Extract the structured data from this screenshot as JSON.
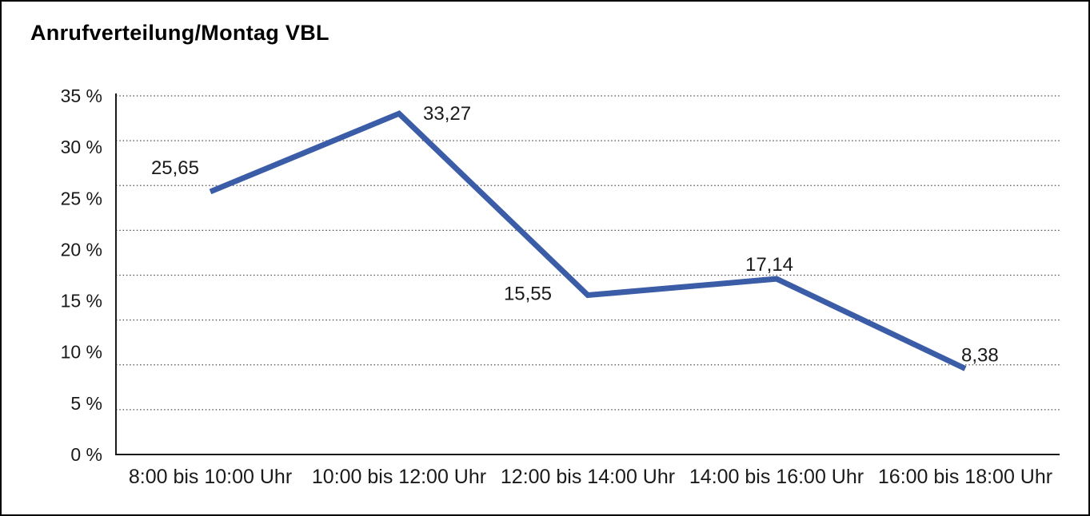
{
  "chart": {
    "title": "Anrufverteilung/Montag VBL"
  },
  "chart_data": {
    "type": "line",
    "title": "Anrufverteilung/Montag VBL",
    "categories": [
      "8:00 bis 10:00 Uhr",
      "10:00 bis 12:00 Uhr",
      "12:00 bis 14:00 Uhr",
      "14:00 bis 16:00 Uhr",
      "16:00 bis 18:00 Uhr"
    ],
    "values": [
      25.65,
      33.27,
      15.55,
      17.14,
      8.38
    ],
    "value_labels": [
      "25,65",
      "33,27",
      "15,55",
      "17,14",
      "8,38"
    ],
    "y_ticks": [
      "0 %",
      "5 %",
      "10 %",
      "15 %",
      "20 %",
      "25 %",
      "30 %",
      "35 %"
    ],
    "ylim": [
      0,
      35
    ],
    "xlabel": "",
    "ylabel": "",
    "legend": "none",
    "grid": "horizontal-dotted",
    "grid_line_count": 9,
    "line_color": "#3B5CA6",
    "grid_color": "#4d4d4d",
    "axis_color": "#1a1a1a",
    "text_color": "#1a1a1a"
  }
}
